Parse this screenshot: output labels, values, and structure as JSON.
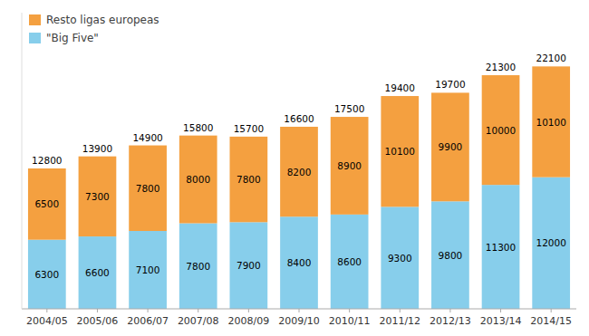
{
  "chart_data": {
    "type": "bar",
    "stacked": true,
    "categories": [
      "2004/05",
      "2005/06",
      "2006/07",
      "2007/08",
      "2008/09",
      "2009/10",
      "2010/11",
      "2011/12",
      "2012/13",
      "2013/14",
      "2014/15"
    ],
    "series": [
      {
        "name": "\"Big Five\"",
        "color": "#87CEEB",
        "values": [
          6300,
          6600,
          7100,
          7800,
          7900,
          8400,
          8600,
          9300,
          9800,
          11300,
          12000
        ]
      },
      {
        "name": "Resto ligas europeas",
        "color": "#F4A040",
        "values": [
          6500,
          7300,
          7800,
          8000,
          7800,
          8200,
          8900,
          10100,
          9900,
          10000,
          10100
        ]
      }
    ],
    "totals": [
      12800,
      13900,
      14900,
      15800,
      15700,
      16600,
      17500,
      19400,
      19700,
      21300,
      22100
    ],
    "ylim": [
      0,
      27000
    ],
    "tick_labels": "x",
    "data_labels": true,
    "grid": false,
    "legend": "upper left"
  }
}
